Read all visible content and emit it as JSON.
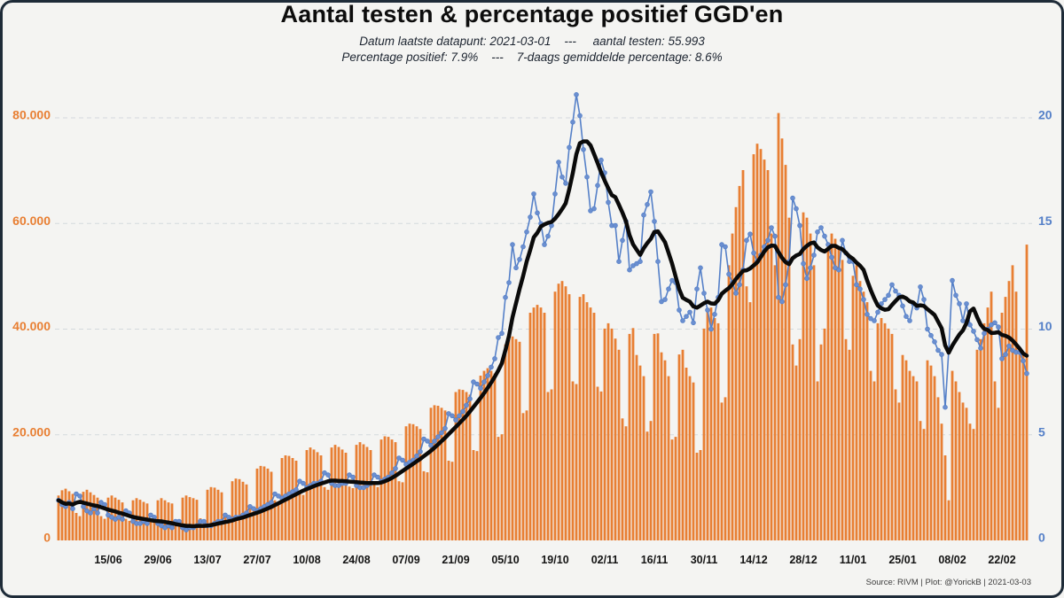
{
  "header": {
    "title": "Aantal testen & percentage positief GGD'en",
    "subtitle_line1": "Datum laatste datapunt: 2021-03-01    ---     aantal testen: 55.993",
    "subtitle_line2": "Percentage positief: 7.9%    ---    7-daags gemiddelde percentage: 8.6%"
  },
  "footer": {
    "source_line": "Source: RIVM | Plot: @YorickB |  2021-03-03"
  },
  "colors": {
    "background": "#f4f4f2",
    "border": "#1e2b38",
    "bars": "#e87f33",
    "left_axis_labels": "#e87f33",
    "percentage_line": "#5580c8",
    "percentage_marker": "#6b8fd0",
    "average_line": "#0a0a0a",
    "gridline": "#d3d9dd",
    "x_axis_labels": "#141414"
  },
  "chart_data": {
    "type": "bar",
    "title": "Aantal testen & percentage positief GGD'en",
    "start_date": "2020-06-01",
    "end_date": "2021-03-01",
    "grid": "dashed horizontal",
    "legend": "none (series identified in subtitle)",
    "x_tick_labels": [
      "15/06",
      "29/06",
      "13/07",
      "27/07",
      "10/08",
      "24/08",
      "07/09",
      "21/09",
      "05/10",
      "19/10",
      "02/11",
      "16/11",
      "30/11",
      "14/12",
      "28/12",
      "11/01",
      "25/01",
      "08/02",
      "22/02"
    ],
    "x_tick_day_index_start": 14,
    "x_tick_day_step": 14,
    "left_axis": {
      "label_values": [
        0,
        20000,
        40000,
        60000,
        80000
      ],
      "tick_labels": [
        "0",
        "20.000",
        "40.000",
        "60.000",
        "80.000"
      ],
      "max": 84000
    },
    "right_axis": {
      "label_values": [
        0,
        5,
        10,
        15,
        20
      ],
      "tick_labels": [
        "0",
        "5",
        "10",
        "15",
        "20"
      ],
      "max": 21,
      "unit": "%"
    },
    "series": [
      {
        "name": "aantal testen",
        "type": "bar",
        "axis": "left",
        "values": [
          8500,
          9500,
          9800,
          9300,
          8800,
          5200,
          4600,
          9200,
          9600,
          9100,
          8600,
          8100,
          4600,
          4100,
          8100,
          8500,
          8100,
          7700,
          7200,
          4100,
          3700,
          7600,
          8000,
          7700,
          7300,
          7000,
          3700,
          3500,
          7600,
          8000,
          7600,
          7200,
          7000,
          3600,
          3400,
          8100,
          8500,
          8200,
          8000,
          7700,
          4200,
          3900,
          9600,
          10100,
          10000,
          9600,
          9100,
          5100,
          4700,
          11200,
          11700,
          11600,
          11100,
          10600,
          6100,
          5600,
          13600,
          14100,
          14000,
          13600,
          13000,
          7600,
          7100,
          15600,
          16100,
          16000,
          15600,
          15100,
          9100,
          8600,
          17100,
          17600,
          17200,
          16700,
          16100,
          10100,
          9600,
          17600,
          18100,
          17700,
          17200,
          16600,
          10200,
          9900,
          18100,
          18600,
          18200,
          17700,
          17100,
          10600,
          10100,
          19100,
          19700,
          19600,
          19100,
          18600,
          11200,
          11000,
          21600,
          22100,
          22000,
          21600,
          21100,
          13100,
          12900,
          25100,
          25600,
          25500,
          25100,
          24600,
          15100,
          14900,
          28100,
          28600,
          28500,
          28100,
          27600,
          17100,
          16900,
          31200,
          32100,
          32600,
          32100,
          31600,
          19600,
          20100,
          37100,
          38100,
          38600,
          38100,
          37600,
          24100,
          24600,
          43100,
          44100,
          44600,
          44100,
          43100,
          28100,
          28600,
          47100,
          48600,
          49100,
          48100,
          46600,
          30100,
          29600,
          46100,
          46600,
          45100,
          44100,
          43100,
          29100,
          28200,
          40100,
          41100,
          40100,
          38200,
          36100,
          23100,
          21600,
          39100,
          40200,
          35100,
          33100,
          31100,
          20600,
          22600,
          39100,
          39200,
          35600,
          34100,
          31100,
          19100,
          19600,
          35200,
          36100,
          32700,
          31100,
          29900,
          16600,
          17100,
          40100,
          43600,
          44100,
          42100,
          41100,
          26100,
          27100,
          52100,
          58100,
          63100,
          67100,
          70100,
          48100,
          45100,
          73100,
          75100,
          74100,
          72100,
          70100,
          58100,
          52100,
          80900,
          76100,
          71100,
          61100,
          37100,
          33100,
          38100,
          62100,
          61100,
          58100,
          52100,
          30100,
          37100,
          40100,
          56100,
          58100,
          57100,
          55100,
          53100,
          38100,
          36100,
          50100,
          52100,
          49100,
          47100,
          45100,
          32100,
          30100,
          41100,
          42100,
          41100,
          40100,
          39100,
          28600,
          26100,
          35100,
          34100,
          32100,
          31100,
          30100,
          22600,
          21100,
          34100,
          33100,
          31100,
          27100,
          22100,
          16100,
          7600,
          32100,
          30100,
          28100,
          26100,
          25100,
          22100,
          21100,
          36100,
          38100,
          41100,
          44100,
          47100,
          30100,
          25100,
          43100,
          46100,
          49100,
          52100,
          47100,
          36100,
          35100,
          55993
        ]
      },
      {
        "name": "Percentage positief",
        "type": "line+markers",
        "axis": "right",
        "values": [
          1.9,
          1.7,
          1.6,
          1.8,
          1.5,
          2.2,
          2.1,
          1.6,
          1.4,
          1.3,
          1.5,
          1.3,
          1.8,
          1.7,
          1.2,
          1.1,
          1.0,
          1.1,
          1.0,
          1.4,
          1.3,
          0.9,
          0.8,
          0.8,
          0.9,
          0.8,
          1.2,
          1.1,
          0.8,
          0.7,
          0.6,
          0.7,
          0.6,
          0.9,
          0.9,
          0.6,
          0.5,
          0.6,
          0.6,
          0.7,
          0.9,
          0.9,
          0.7,
          0.7,
          0.8,
          0.9,
          0.9,
          1.2,
          1.1,
          1.0,
          1.1,
          1.1,
          1.2,
          1.3,
          1.6,
          1.5,
          1.4,
          1.5,
          1.6,
          1.7,
          1.8,
          2.2,
          2.1,
          2.0,
          2.1,
          2.2,
          2.3,
          2.4,
          2.8,
          2.7,
          2.5,
          2.6,
          2.7,
          2.7,
          2.8,
          3.2,
          3.1,
          2.7,
          2.6,
          2.6,
          2.7,
          2.7,
          3.1,
          3.0,
          2.6,
          2.5,
          2.5,
          2.6,
          2.7,
          3.1,
          3.0,
          2.8,
          2.9,
          3.0,
          3.2,
          3.4,
          3.9,
          3.8,
          3.6,
          3.7,
          3.8,
          4.0,
          4.2,
          4.8,
          4.7,
          4.5,
          4.7,
          4.9,
          5.1,
          5.3,
          6.0,
          5.9,
          5.7,
          5.9,
          6.1,
          6.4,
          6.7,
          7.5,
          7.4,
          7.2,
          7.5,
          7.8,
          8.2,
          8.6,
          9.6,
          9.8,
          11.5,
          12.2,
          14.0,
          12.9,
          13.3,
          13.9,
          14.6,
          15.3,
          16.4,
          15.5,
          15.0,
          14.0,
          14.4,
          14.9,
          16.4,
          17.9,
          17.2,
          16.9,
          18.6,
          19.8,
          21.1,
          20.1,
          18.5,
          17.2,
          15.6,
          15.7,
          16.8,
          18.0,
          17.4,
          16.0,
          14.9,
          14.9,
          13.2,
          14.2,
          15.1,
          12.8,
          13.0,
          13.1,
          13.2,
          15.4,
          15.9,
          16.5,
          15.1,
          13.2,
          11.3,
          11.4,
          11.9,
          12.3,
          12.2,
          10.9,
          10.4,
          10.6,
          10.8,
          10.3,
          11.9,
          12.9,
          11.7,
          10.9,
          10.0,
          10.7,
          11.5,
          14.0,
          13.9,
          12.6,
          12.2,
          11.7,
          12.1,
          12.8,
          14.2,
          14.5,
          13.6,
          13.2,
          13.5,
          13.9,
          14.2,
          14.8,
          14.4,
          11.5,
          11.3,
          12.1,
          13.2,
          16.2,
          15.7,
          14.9,
          13.1,
          12.4,
          12.9,
          13.5,
          14.6,
          14.8,
          14.4,
          14.0,
          13.4,
          12.9,
          12.8,
          14.2,
          13.6,
          13.2,
          13.2,
          12.1,
          11.9,
          11.4,
          10.7,
          10.5,
          10.4,
          10.8,
          11.2,
          11.4,
          11.6,
          12.1,
          11.8,
          11.6,
          11.1,
          10.6,
          10.4,
          11.2,
          11.0,
          12.0,
          11.4,
          10.0,
          9.7,
          9.4,
          9.0,
          8.8,
          6.3,
          9.0,
          12.3,
          11.6,
          11.2,
          10.4,
          11.2,
          10.2,
          9.9,
          9.5,
          9.1,
          9.8,
          10.0,
          10.2,
          10.3,
          10.1,
          8.6,
          8.8,
          9.2,
          9.0,
          8.9,
          8.9,
          8.5,
          7.9
        ]
      },
      {
        "name": "7-daags gemiddelde percentage",
        "type": "line",
        "axis": "right",
        "derived": "trailing 7-day mean of 'Percentage positief'"
      }
    ],
    "annotations": {
      "last_datapoint_date": "2021-03-01",
      "last_tests": 55993,
      "last_percentage_positive": 7.9,
      "last_7day_average_percentage": 8.6
    }
  }
}
